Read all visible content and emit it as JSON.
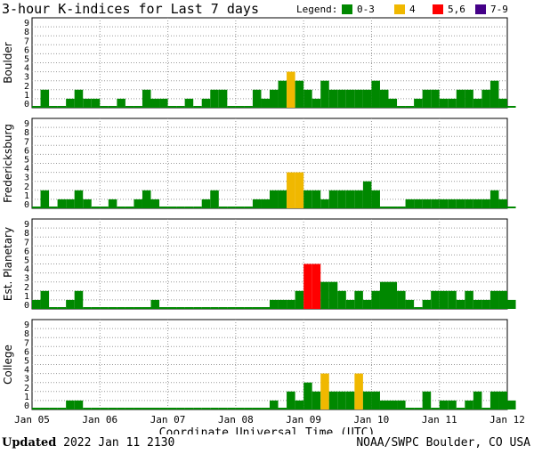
{
  "chart_data": {
    "type": "bar",
    "title": "3-hour K-indices for Last 7 days",
    "xlabel": "Coordinate Universal Time (UTC)",
    "x_tick_labels": [
      "Jan 05",
      "Jan 06",
      "Jan 07",
      "Jan 08",
      "Jan 09",
      "Jan 10",
      "Jan 11",
      "Jan 12"
    ],
    "ylim": [
      0,
      9
    ],
    "y_ticks": [
      0,
      1,
      2,
      3,
      4,
      5,
      6,
      7,
      8,
      9
    ],
    "legend": {
      "title": "Legend:",
      "placement": "top-right",
      "entries": [
        {
          "label": "0-3",
          "color": "#008800"
        },
        {
          "label": "4",
          "color": "#f0b800"
        },
        {
          "label": "5,6",
          "color": "#ff0000"
        },
        {
          "label": "7-9",
          "color": "#440088"
        }
      ]
    },
    "grid": true,
    "series": [
      {
        "name": "Boulder",
        "values": [
          0,
          2,
          0,
          0,
          1,
          2,
          1,
          1,
          0,
          0,
          1,
          0,
          0,
          2,
          1,
          1,
          0,
          0,
          1,
          0,
          1,
          2,
          2,
          0,
          0,
          0,
          2,
          1,
          2,
          3,
          4,
          3,
          2,
          1,
          3,
          2,
          2,
          2,
          2,
          2,
          3,
          2,
          1,
          0,
          0,
          1,
          2,
          2,
          1,
          1,
          2,
          2,
          1,
          2,
          3,
          1,
          0
        ]
      },
      {
        "name": "Fredericksburg",
        "values": [
          0,
          2,
          0,
          1,
          1,
          2,
          1,
          0,
          0,
          1,
          0,
          0,
          1,
          2,
          1,
          0,
          0,
          0,
          0,
          0,
          1,
          2,
          0,
          0,
          0,
          0,
          1,
          1,
          2,
          2,
          4,
          4,
          2,
          2,
          1,
          2,
          2,
          2,
          2,
          3,
          2,
          0,
          0,
          0,
          1,
          1,
          1,
          1,
          1,
          1,
          1,
          1,
          1,
          1,
          2,
          1,
          0
        ]
      },
      {
        "name": "Est. Planetary",
        "values": [
          1,
          2,
          0,
          0,
          1,
          2,
          0,
          0,
          0,
          0,
          0,
          0,
          0,
          0,
          1,
          0,
          0,
          0,
          0,
          0,
          0,
          0,
          0,
          0,
          0,
          0,
          0,
          0,
          1,
          1,
          1,
          2,
          5,
          5,
          3,
          3,
          2,
          1,
          2,
          1,
          2,
          3,
          3,
          2,
          1,
          0,
          1,
          2,
          2,
          2,
          1,
          2,
          1,
          1,
          2,
          2,
          1
        ]
      },
      {
        "name": "College",
        "values": [
          0,
          0,
          0,
          0,
          1,
          1,
          0,
          0,
          0,
          0,
          0,
          0,
          0,
          0,
          0,
          0,
          0,
          0,
          0,
          0,
          0,
          0,
          0,
          0,
          0,
          0,
          0,
          0,
          1,
          0,
          2,
          1,
          3,
          2,
          4,
          2,
          2,
          2,
          4,
          2,
          2,
          1,
          1,
          1,
          0,
          0,
          2,
          0,
          1,
          1,
          0,
          1,
          2,
          0,
          2,
          2,
          1
        ]
      }
    ]
  },
  "footer": {
    "updated_label": "Updated",
    "updated_value": "2022 Jan 11 2130",
    "source": "NOAA/SWPC Boulder, CO USA"
  }
}
